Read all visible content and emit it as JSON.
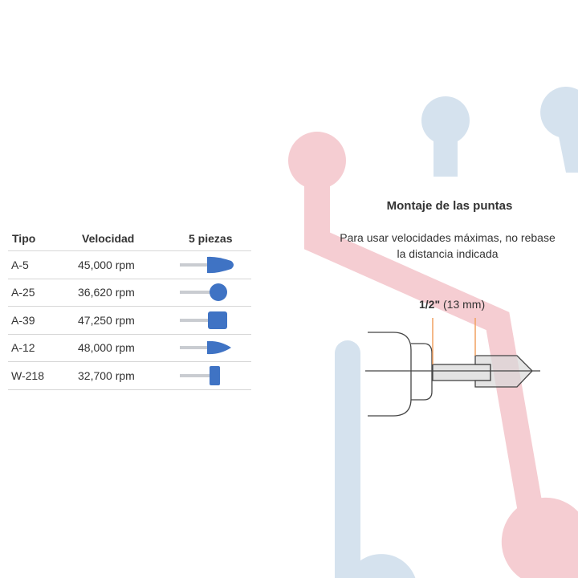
{
  "table": {
    "headers": [
      "Tipo",
      "Velocidad",
      "5 piezas"
    ],
    "rows": [
      {
        "tipo": "A-5",
        "velocidad": "45,000 rpm",
        "shape": "cone"
      },
      {
        "tipo": "A-25",
        "velocidad": "36,620 rpm",
        "shape": "ball"
      },
      {
        "tipo": "A-39",
        "velocidad": "47,250 rpm",
        "shape": "cylinder"
      },
      {
        "tipo": "A-12",
        "velocidad": "48,000 rpm",
        "shape": "bullet"
      },
      {
        "tipo": "W-218",
        "velocidad": "32,700 rpm",
        "shape": "small-cylinder"
      }
    ]
  },
  "diagram": {
    "title": "Montaje de las puntas",
    "subtitle_line1": "Para usar velocidades máximas, no rebase",
    "subtitle_line2": "la distancia indicada",
    "measure_bold": "1/2\"",
    "measure_rest": " (13 mm)"
  },
  "colors": {
    "bit_blue": "#3f73c4",
    "accent_orange": "#f0a060",
    "deco_pink": "#f4c6cc",
    "deco_blue": "#cddcea"
  }
}
